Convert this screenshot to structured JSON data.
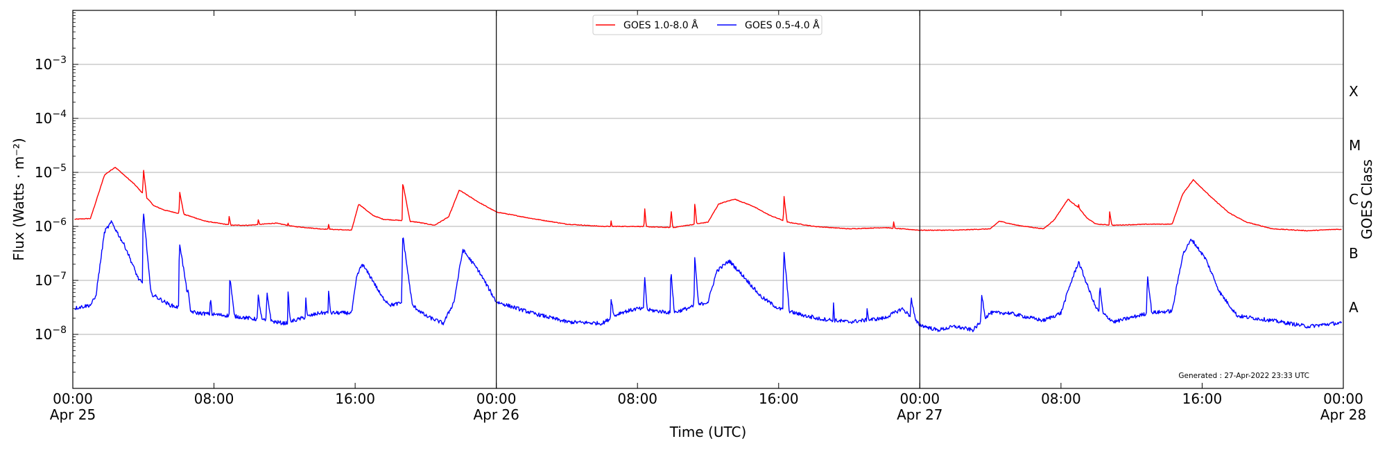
{
  "chart_data": {
    "type": "line",
    "xlabel": "Time (UTC)",
    "ylabel": "Flux (Watts · m⁻²)",
    "y2label": "GOES Class",
    "yscale": "log",
    "ylim": [
      1e-09,
      0.01
    ],
    "xlim": [
      0,
      72
    ],
    "x_units": "hours since 2022-04-25 00:00 UTC",
    "x_ticks": [
      {
        "x": 0,
        "line1": "00:00",
        "line2": "Apr 25"
      },
      {
        "x": 8,
        "line1": "08:00",
        "line2": ""
      },
      {
        "x": 16,
        "line1": "16:00",
        "line2": ""
      },
      {
        "x": 24,
        "line1": "00:00",
        "line2": "Apr 26"
      },
      {
        "x": 32,
        "line1": "08:00",
        "line2": ""
      },
      {
        "x": 40,
        "line1": "16:00",
        "line2": ""
      },
      {
        "x": 48,
        "line1": "00:00",
        "line2": "Apr 27"
      },
      {
        "x": 56,
        "line1": "08:00",
        "line2": ""
      },
      {
        "x": 64,
        "line1": "16:00",
        "line2": ""
      },
      {
        "x": 72,
        "line1": "00:00",
        "line2": "Apr 28"
      }
    ],
    "y_ticks": [
      {
        "value": 1e-08,
        "base": "10",
        "exp": "−8"
      },
      {
        "value": 1e-07,
        "base": "10",
        "exp": "−7"
      },
      {
        "value": 1e-06,
        "base": "10",
        "exp": "−6"
      },
      {
        "value": 1e-05,
        "base": "10",
        "exp": "−5"
      },
      {
        "value": 0.0001,
        "base": "10",
        "exp": "−4"
      },
      {
        "value": 0.001,
        "base": "10",
        "exp": "−3"
      }
    ],
    "goes_classes": [
      {
        "label": "A",
        "value": 3.16e-08
      },
      {
        "label": "B",
        "value": 3.16e-07
      },
      {
        "label": "C",
        "value": 3.16e-06
      },
      {
        "label": "M",
        "value": 3.16e-05
      },
      {
        "label": "X",
        "value": 0.000316
      }
    ],
    "day_lines": [
      24,
      48
    ],
    "grid_lines": [
      1e-08,
      1e-07,
      1e-06,
      1e-05,
      0.0001,
      0.001
    ],
    "grid": "horizontal",
    "legend": {
      "position": "top-center",
      "entries": [
        {
          "label": "GOES 1.0-8.0 Å",
          "color": "#ff0000"
        },
        {
          "label": "GOES 0.5-4.0 Å",
          "color": "#0000ff"
        }
      ]
    },
    "footnote": "Generated : 27-Apr-2022 23:33 UTC",
    "series": [
      {
        "name": "GOES 1.0-8.0 Å",
        "color": "#ff0000",
        "background": [
          [
            0,
            1.35e-06
          ],
          [
            1,
            1.4e-06
          ],
          [
            1.8,
            9e-06
          ],
          [
            2.4,
            1.25e-05
          ],
          [
            3.5,
            6e-06
          ],
          [
            4.6,
            2.4e-06
          ],
          [
            5.2,
            2e-06
          ],
          [
            6.5,
            1.6e-06
          ],
          [
            7.5,
            1.25e-06
          ],
          [
            9,
            1.05e-06
          ],
          [
            10,
            1.05e-06
          ],
          [
            11.5,
            1.15e-06
          ],
          [
            12.5,
            1e-06
          ],
          [
            14,
            9e-07
          ],
          [
            15.8,
            8.5e-07
          ],
          [
            16.2,
            2.6e-06
          ],
          [
            17,
            1.6e-06
          ],
          [
            17.6,
            1.35e-06
          ],
          [
            18.4,
            1.3e-06
          ],
          [
            19.5,
            1.2e-06
          ],
          [
            20.5,
            1.05e-06
          ],
          [
            21.3,
            1.5e-06
          ],
          [
            21.9,
            4.7e-06
          ],
          [
            23,
            2.8e-06
          ],
          [
            24,
            1.85e-06
          ],
          [
            26,
            1.4e-06
          ],
          [
            28,
            1.1e-06
          ],
          [
            30,
            1e-06
          ],
          [
            32,
            1e-06
          ],
          [
            34,
            9.5e-07
          ],
          [
            36,
            1.2e-06
          ],
          [
            36.6,
            2.6e-06
          ],
          [
            37.5,
            3.2e-06
          ],
          [
            38.5,
            2.4e-06
          ],
          [
            39.5,
            1.6e-06
          ],
          [
            40.5,
            1.2e-06
          ],
          [
            42,
            1e-06
          ],
          [
            44,
            9e-07
          ],
          [
            46,
            9.5e-07
          ],
          [
            48,
            8.5e-07
          ],
          [
            50,
            8.5e-07
          ],
          [
            52,
            9e-07
          ],
          [
            52.5,
            1.25e-06
          ],
          [
            53.5,
            1.05e-06
          ],
          [
            55,
            9e-07
          ],
          [
            55.6,
            1.3e-06
          ],
          [
            56.4,
            3.2e-06
          ],
          [
            57,
            2.2e-06
          ],
          [
            57.5,
            1.4e-06
          ],
          [
            58,
            1.1e-06
          ],
          [
            59,
            1.05e-06
          ],
          [
            61,
            1.1e-06
          ],
          [
            62.3,
            1.1e-06
          ],
          [
            62.9,
            4e-06
          ],
          [
            63.5,
            7.3e-06
          ],
          [
            64.5,
            3.5e-06
          ],
          [
            65.5,
            1.8e-06
          ],
          [
            66.5,
            1.2e-06
          ],
          [
            68,
            9e-07
          ],
          [
            70,
            8.3e-07
          ],
          [
            71.5,
            8.8e-07
          ]
        ],
        "flares": [
          {
            "t": 4.0,
            "peak": 1.2e-05,
            "w": 0.15
          },
          {
            "t": 6.05,
            "peak": 4.5e-06,
            "w": 0.25
          },
          {
            "t": 7.8,
            "peak": 1.3e-06,
            "w": 0.15
          },
          {
            "t": 8.85,
            "peak": 1.6e-06,
            "w": 0.25
          },
          {
            "t": 10.5,
            "peak": 1.4e-06,
            "w": 0.3
          },
          {
            "t": 12.2,
            "peak": 1.2e-06,
            "w": 0.2
          },
          {
            "t": 14.5,
            "peak": 1.2e-06,
            "w": 0.15
          },
          {
            "t": 18.7,
            "peak": 6.5e-06,
            "w": 0.25
          },
          {
            "t": 30.5,
            "peak": 1.3e-06,
            "w": 0.2
          },
          {
            "t": 32.4,
            "peak": 2.3e-06,
            "w": 0.12
          },
          {
            "t": 33.9,
            "peak": 2.2e-06,
            "w": 0.12
          },
          {
            "t": 35.25,
            "peak": 2.8e-06,
            "w": 0.12
          },
          {
            "t": 40.3,
            "peak": 3.8e-06,
            "w": 0.15
          },
          {
            "t": 46.5,
            "peak": 1.3e-06,
            "w": 0.25
          },
          {
            "t": 57.0,
            "peak": 2.6e-06,
            "w": 0.2
          },
          {
            "t": 58.75,
            "peak": 2e-06,
            "w": 0.2
          }
        ]
      },
      {
        "name": "GOES 0.5-4.0 Å",
        "color": "#0000ff",
        "background": [
          [
            0,
            3e-08
          ],
          [
            1,
            3.5e-08
          ],
          [
            1.3,
            5e-08
          ],
          [
            1.8,
            8e-07
          ],
          [
            2.2,
            1.2e-06
          ],
          [
            3,
            4e-07
          ],
          [
            3.7,
            1.1e-07
          ],
          [
            4.3,
            6e-08
          ],
          [
            5.5,
            3.5e-08
          ],
          [
            7,
            2.5e-08
          ],
          [
            9,
            2.2e-08
          ],
          [
            11,
            1.8e-08
          ],
          [
            12,
            1.6e-08
          ],
          [
            14,
            2.5e-08
          ],
          [
            15.8,
            2.5e-08
          ],
          [
            16.1,
            1.2e-07
          ],
          [
            16.4,
            2e-07
          ],
          [
            17,
            1e-07
          ],
          [
            17.5,
            5e-08
          ],
          [
            18,
            3.5e-08
          ],
          [
            19,
            4e-08
          ],
          [
            20,
            2.2e-08
          ],
          [
            21,
            1.6e-08
          ],
          [
            21.6,
            4e-08
          ],
          [
            22.1,
            3.7e-07
          ],
          [
            23,
            1.5e-07
          ],
          [
            24,
            4e-08
          ],
          [
            26,
            2.5e-08
          ],
          [
            28,
            1.7e-08
          ],
          [
            30,
            1.6e-08
          ],
          [
            31,
            2.5e-08
          ],
          [
            32,
            3e-08
          ],
          [
            34,
            2.5e-08
          ],
          [
            36,
            4e-08
          ],
          [
            36.5,
            1.5e-07
          ],
          [
            37.2,
            2.3e-07
          ],
          [
            38,
            1.2e-07
          ],
          [
            39,
            5e-08
          ],
          [
            40,
            3e-08
          ],
          [
            42,
            2e-08
          ],
          [
            44,
            1.7e-08
          ],
          [
            46,
            2e-08
          ],
          [
            47,
            3e-08
          ],
          [
            48,
            1.5e-08
          ],
          [
            49,
            1.2e-08
          ],
          [
            50,
            1.4e-08
          ],
          [
            51,
            1.2e-08
          ],
          [
            52,
            2.5e-08
          ],
          [
            53,
            2.5e-08
          ],
          [
            55,
            1.8e-08
          ],
          [
            56,
            2.5e-08
          ],
          [
            56.5,
            8e-08
          ],
          [
            57,
            2.2e-07
          ],
          [
            57.5,
            8e-08
          ],
          [
            58,
            3e-08
          ],
          [
            59,
            1.7e-08
          ],
          [
            61,
            2.5e-08
          ],
          [
            62.3,
            2.7e-08
          ],
          [
            62.9,
            3e-07
          ],
          [
            63.4,
            5.8e-07
          ],
          [
            64.2,
            2.5e-07
          ],
          [
            65,
            6e-08
          ],
          [
            66,
            2.2e-08
          ],
          [
            68,
            1.8e-08
          ],
          [
            70,
            1.4e-08
          ],
          [
            71.5,
            1.6e-08
          ]
        ],
        "flares": [
          {
            "t": 4.0,
            "peak": 2e-06,
            "w": 0.12
          },
          {
            "t": 6.05,
            "peak": 5.2e-07,
            "w": 0.2
          },
          {
            "t": 6.5,
            "peak": 8e-08,
            "w": 0.15
          },
          {
            "t": 7.8,
            "peak": 5.5e-08,
            "w": 0.1
          },
          {
            "t": 8.9,
            "peak": 1.2e-07,
            "w": 0.15
          },
          {
            "t": 10.5,
            "peak": 5.5e-08,
            "w": 0.2
          },
          {
            "t": 11.0,
            "peak": 6e-08,
            "w": 0.2
          },
          {
            "t": 12.2,
            "peak": 6e-08,
            "w": 0.1
          },
          {
            "t": 13.2,
            "peak": 5e-08,
            "w": 0.1
          },
          {
            "t": 14.5,
            "peak": 7e-08,
            "w": 0.1
          },
          {
            "t": 18.7,
            "peak": 7e-07,
            "w": 0.18
          },
          {
            "t": 30.5,
            "peak": 5e-08,
            "w": 0.2
          },
          {
            "t": 32.4,
            "peak": 1.3e-07,
            "w": 0.1
          },
          {
            "t": 33.9,
            "peak": 1.6e-07,
            "w": 0.1
          },
          {
            "t": 35.25,
            "peak": 2.8e-07,
            "w": 0.1
          },
          {
            "t": 40.3,
            "peak": 3.5e-07,
            "w": 0.12
          },
          {
            "t": 41.9,
            "peak": 3e-08,
            "w": 0.1
          },
          {
            "t": 43.1,
            "peak": 4e-08,
            "w": 0.1
          },
          {
            "t": 45.0,
            "peak": 3.5e-08,
            "w": 0.15
          },
          {
            "t": 47.5,
            "peak": 5e-08,
            "w": 0.25
          },
          {
            "t": 51.5,
            "peak": 6e-08,
            "w": 0.2
          },
          {
            "t": 58.2,
            "peak": 8e-08,
            "w": 0.15
          },
          {
            "t": 60.9,
            "peak": 1.3e-07,
            "w": 0.15
          }
        ]
      }
    ]
  }
}
